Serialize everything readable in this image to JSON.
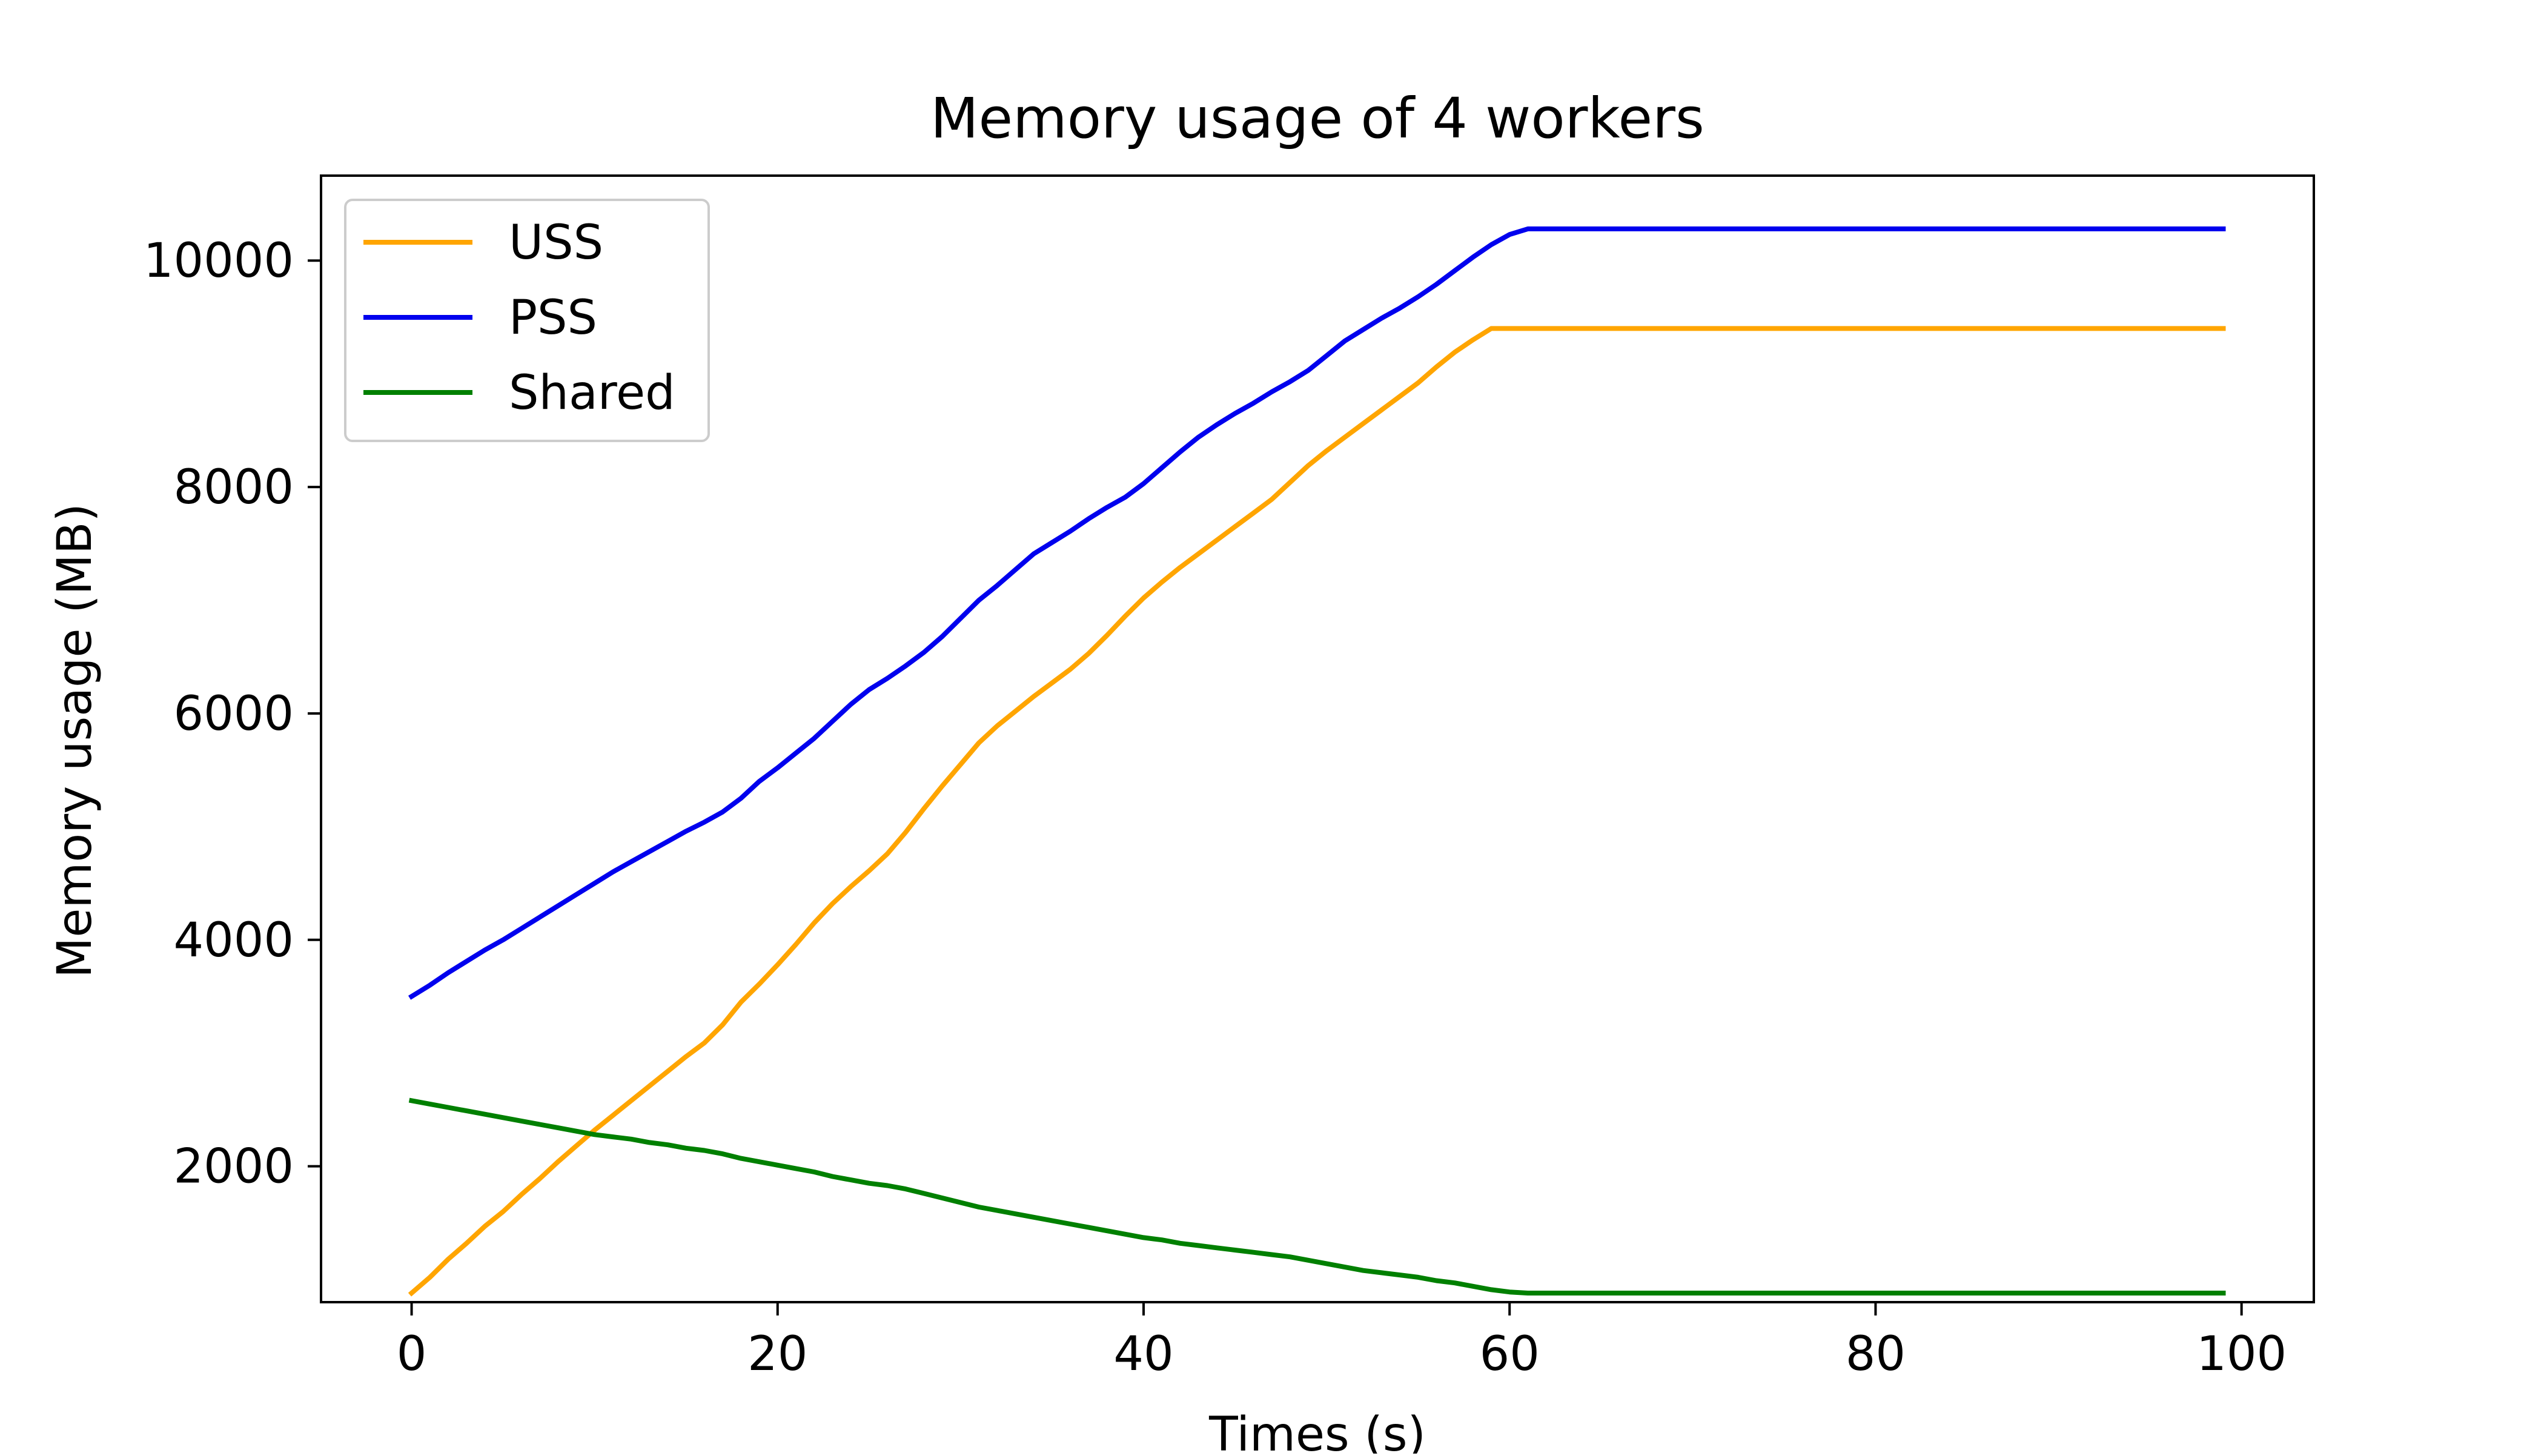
{
  "chart_data": {
    "type": "line",
    "title": "Memory usage of 4 workers",
    "xlabel": "Times (s)",
    "ylabel": "Memory usage (MB)",
    "xlim": [
      -4.95,
      103.95
    ],
    "ylim": [
      800,
      10750
    ],
    "xticks": [
      0,
      20,
      40,
      60,
      80,
      100
    ],
    "yticks": [
      2000,
      4000,
      6000,
      8000,
      10000
    ],
    "grid": false,
    "legend": "top-left",
    "x": [
      0,
      1,
      2,
      3,
      4,
      5,
      6,
      7,
      8,
      9,
      10,
      11,
      12,
      13,
      14,
      15,
      16,
      17,
      18,
      19,
      20,
      21,
      22,
      23,
      24,
      25,
      26,
      27,
      28,
      29,
      30,
      31,
      32,
      33,
      34,
      35,
      36,
      37,
      38,
      39,
      40,
      41,
      42,
      43,
      44,
      45,
      46,
      47,
      48,
      49,
      50,
      51,
      52,
      53,
      54,
      55,
      56,
      57,
      58,
      59,
      60,
      61,
      62,
      63,
      64,
      65,
      66,
      67,
      68,
      69,
      70,
      71,
      72,
      73,
      74,
      75,
      76,
      77,
      78,
      79,
      80,
      81,
      82,
      83,
      84,
      85,
      86,
      87,
      88,
      89,
      90,
      91,
      92,
      93,
      94,
      95,
      96,
      97,
      98,
      99
    ],
    "series": [
      {
        "name": "USS",
        "color": "#FFA500",
        "values": [
          880,
          1020,
          1180,
          1320,
          1470,
          1600,
          1750,
          1890,
          2040,
          2180,
          2320,
          2450,
          2580,
          2710,
          2840,
          2970,
          3090,
          3250,
          3450,
          3610,
          3780,
          3960,
          4150,
          4320,
          4470,
          4610,
          4760,
          4950,
          5160,
          5360,
          5550,
          5740,
          5890,
          6020,
          6150,
          6270,
          6390,
          6530,
          6690,
          6860,
          7020,
          7160,
          7290,
          7410,
          7530,
          7650,
          7770,
          7890,
          8040,
          8190,
          8320,
          8440,
          8560,
          8680,
          8800,
          8920,
          9060,
          9190,
          9300,
          9400,
          9400,
          9400,
          9400,
          9400,
          9400,
          9400,
          9400,
          9400,
          9400,
          9400,
          9400,
          9400,
          9400,
          9400,
          9400,
          9400,
          9400,
          9400,
          9400,
          9400,
          9400,
          9400,
          9400,
          9400,
          9400,
          9400,
          9400,
          9400,
          9400,
          9400,
          9400,
          9400,
          9400,
          9400,
          9400,
          9400,
          9400,
          9400,
          9400,
          9400
        ]
      },
      {
        "name": "PSS",
        "color": "#0000EE",
        "values": [
          3500,
          3600,
          3710,
          3810,
          3910,
          4000,
          4100,
          4200,
          4300,
          4400,
          4500,
          4600,
          4690,
          4780,
          4870,
          4960,
          5040,
          5130,
          5250,
          5400,
          5520,
          5650,
          5780,
          5930,
          6080,
          6210,
          6310,
          6420,
          6540,
          6680,
          6840,
          7000,
          7130,
          7270,
          7410,
          7510,
          7610,
          7720,
          7820,
          7910,
          8030,
          8170,
          8310,
          8440,
          8550,
          8650,
          8740,
          8840,
          8930,
          9030,
          9160,
          9290,
          9390,
          9490,
          9580,
          9680,
          9790,
          9910,
          10030,
          10140,
          10230,
          10280,
          10280,
          10280,
          10280,
          10280,
          10280,
          10280,
          10280,
          10280,
          10280,
          10280,
          10280,
          10280,
          10280,
          10280,
          10280,
          10280,
          10280,
          10280,
          10280,
          10280,
          10280,
          10280,
          10280,
          10280,
          10280,
          10280,
          10280,
          10280,
          10280,
          10280,
          10280,
          10280,
          10280,
          10280,
          10280,
          10280,
          10280,
          10280
        ]
      },
      {
        "name": "Shared",
        "color": "#008000",
        "values": [
          2580,
          2550,
          2520,
          2490,
          2460,
          2430,
          2400,
          2370,
          2340,
          2310,
          2280,
          2260,
          2240,
          2210,
          2190,
          2160,
          2140,
          2110,
          2070,
          2040,
          2010,
          1980,
          1950,
          1910,
          1880,
          1850,
          1830,
          1800,
          1760,
          1720,
          1680,
          1640,
          1610,
          1580,
          1550,
          1520,
          1490,
          1460,
          1430,
          1400,
          1370,
          1350,
          1320,
          1300,
          1280,
          1260,
          1240,
          1220,
          1200,
          1170,
          1140,
          1110,
          1080,
          1060,
          1040,
          1020,
          990,
          970,
          940,
          910,
          890,
          880,
          880,
          880,
          880,
          880,
          880,
          880,
          880,
          880,
          880,
          880,
          880,
          880,
          880,
          880,
          880,
          880,
          880,
          880,
          880,
          880,
          880,
          880,
          880,
          880,
          880,
          880,
          880,
          880,
          880,
          880,
          880,
          880,
          880,
          880,
          880,
          880,
          880,
          880
        ]
      }
    ]
  }
}
